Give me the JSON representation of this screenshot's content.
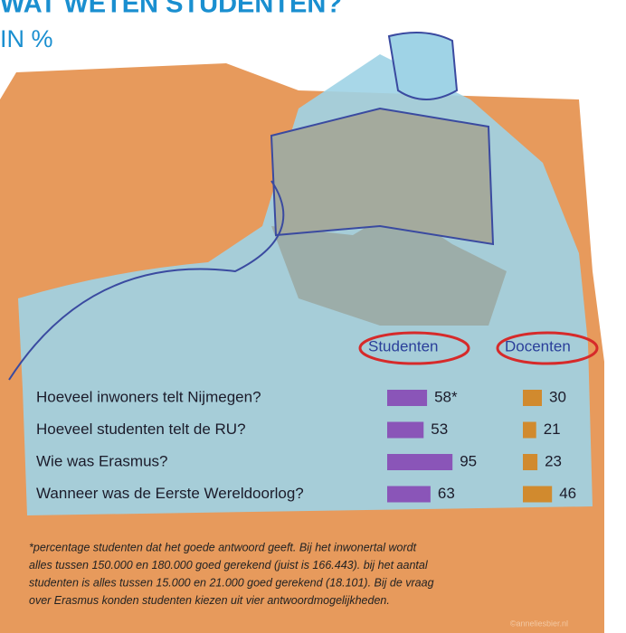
{
  "chart_data": {
    "type": "bar",
    "title": "WAT WETEN STUDENTEN?",
    "subtitle": "IN %",
    "categories": [
      "Hoeveel inwoners telt Nijmegen?",
      "Hoeveel studenten telt de RU?",
      "Wie was Erasmus?",
      "Wanneer was de Eerste Wereldoorlog?"
    ],
    "series": [
      {
        "name": "Studenten",
        "color": "#8a55b8",
        "values": [
          58,
          53,
          95,
          63
        ],
        "value_labels": [
          "58*",
          "53",
          "95",
          "63"
        ]
      },
      {
        "name": "Docenten",
        "color": "#d18a2e",
        "values": [
          30,
          21,
          23,
          46
        ]
      }
    ],
    "footnote": [
      "*percentage studenten dat het goede antwoord geeft. Bij het inwonertal wordt",
      "alles tussen 150.000 en 180.000 goed gerekend (juist is 166.443). bij het aantal",
      "studenten is alles tussen 15.000 en 21.000 goed gerekend (18.101). Bij de vraag",
      "over Erasmus konden studenten kiezen uit vier antwoordmogelijkheden."
    ],
    "credit": "©anneliesbier.nl"
  }
}
